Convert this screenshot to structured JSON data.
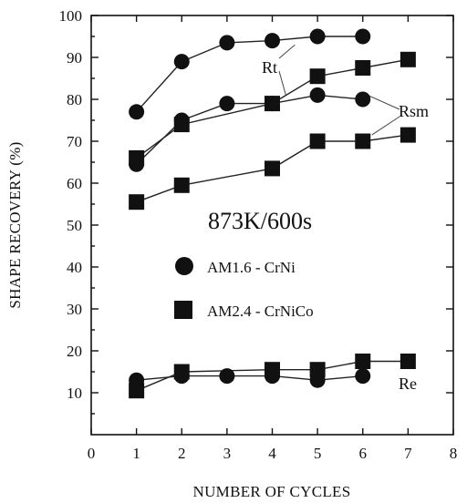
{
  "chart_data": {
    "type": "line",
    "xlabel": "NUMBER OF CYCLES",
    "ylabel": "SHAPE RECOVERY (%)",
    "xlim": [
      0,
      8
    ],
    "ylim": [
      0,
      100
    ],
    "xticks": [
      "0",
      "1",
      "2",
      "3",
      "4",
      "5",
      "6",
      "7",
      "8"
    ],
    "yticks": [
      "10",
      "20",
      "30",
      "40",
      "50",
      "60",
      "70",
      "80",
      "90",
      "100"
    ],
    "condition": "873K/600s",
    "legend": [
      {
        "label": "AM1.6 - CrNi",
        "marker": "circle"
      },
      {
        "label": "AM2.4 - CrNiCo",
        "marker": "square"
      }
    ],
    "annotations": {
      "rt": "Rt",
      "rsm": "Rsm",
      "re": "Re"
    },
    "series": [
      {
        "alloy": "AM1.6 - CrNi",
        "quantity": "Rt",
        "marker": "circle",
        "x": [
          1,
          2,
          3,
          4,
          5,
          6
        ],
        "y": [
          77,
          89,
          93.5,
          94,
          95,
          95
        ]
      },
      {
        "alloy": "AM1.6 - CrNi",
        "quantity": "Rsm",
        "marker": "circle",
        "x": [
          1,
          2,
          3,
          4,
          5,
          6
        ],
        "y": [
          64.5,
          75,
          79,
          79,
          81,
          80
        ]
      },
      {
        "alloy": "AM1.6 - CrNi",
        "quantity": "Re",
        "marker": "circle",
        "x": [
          1,
          2,
          3,
          4,
          5,
          6
        ],
        "y": [
          13,
          14,
          14,
          14,
          13,
          14
        ]
      },
      {
        "alloy": "AM2.4 - CrNiCo",
        "quantity": "Rt",
        "marker": "square",
        "x": [
          1,
          2,
          4,
          5,
          6,
          7
        ],
        "y": [
          66,
          74,
          79,
          85.5,
          87.5,
          89.5
        ]
      },
      {
        "alloy": "AM2.4 - CrNiCo",
        "quantity": "Rsm",
        "marker": "square",
        "x": [
          1,
          2,
          4,
          5,
          6,
          7
        ],
        "y": [
          55.5,
          59.5,
          63.5,
          70,
          70,
          71.5
        ]
      },
      {
        "alloy": "AM2.4 - CrNiCo",
        "quantity": "Re",
        "marker": "square",
        "x": [
          1,
          2,
          4,
          5,
          6,
          7
        ],
        "y": [
          10.5,
          15,
          15.5,
          15.5,
          17.5,
          17.5
        ]
      }
    ]
  }
}
